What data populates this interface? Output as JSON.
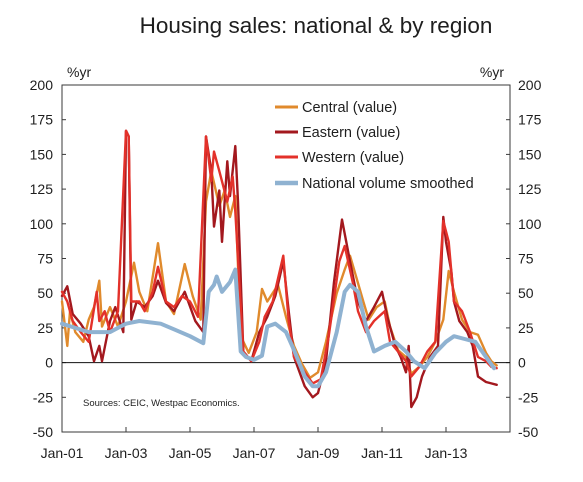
{
  "chart_data": {
    "type": "line",
    "title": "Housing sales: national & by region",
    "ylabel_left": "%yr",
    "ylabel_right": "%yr",
    "ylim": [
      -50,
      200
    ],
    "yticks": [
      -50,
      -25,
      0,
      25,
      50,
      75,
      100,
      125,
      150,
      175,
      200
    ],
    "xlim": [
      "2001-01",
      "2015-01"
    ],
    "xticks": [
      {
        "date": "2001-01",
        "label": "Jan-01"
      },
      {
        "date": "2003-01",
        "label": "Jan-03"
      },
      {
        "date": "2005-01",
        "label": "Jan-05"
      },
      {
        "date": "2007-01",
        "label": "Jan-07"
      },
      {
        "date": "2009-01",
        "label": "Jan-09"
      },
      {
        "date": "2011-01",
        "label": "Jan-11"
      },
      {
        "date": "2013-01",
        "label": "Jan-13"
      }
    ],
    "grid": false,
    "zero_line": true,
    "legend_position": "top-right",
    "source": "Sources: CEIC, Westpac Economics.",
    "series": [
      {
        "name": "Central (value)",
        "color": "#E08A2C",
        "points": [
          [
            "2001-01",
            44
          ],
          [
            "2001-03",
            12
          ],
          [
            "2001-04",
            37
          ],
          [
            "2001-06",
            22
          ],
          [
            "2001-09",
            15
          ],
          [
            "2001-11",
            31
          ],
          [
            "2002-01",
            40
          ],
          [
            "2002-03",
            59
          ],
          [
            "2002-04",
            26
          ],
          [
            "2002-07",
            40
          ],
          [
            "2002-10",
            26
          ],
          [
            "2003-01",
            44
          ],
          [
            "2003-04",
            72
          ],
          [
            "2003-06",
            51
          ],
          [
            "2003-09",
            37
          ],
          [
            "2004-01",
            86
          ],
          [
            "2004-04",
            44
          ],
          [
            "2004-07",
            35
          ],
          [
            "2004-11",
            71
          ],
          [
            "2005-02",
            48
          ],
          [
            "2005-05",
            31
          ],
          [
            "2005-07",
            116
          ],
          [
            "2005-09",
            138
          ],
          [
            "2005-12",
            113
          ],
          [
            "2006-02",
            124
          ],
          [
            "2006-04",
            105
          ],
          [
            "2006-06",
            120
          ],
          [
            "2006-08",
            19
          ],
          [
            "2006-11",
            7
          ],
          [
            "2007-02",
            22
          ],
          [
            "2007-04",
            53
          ],
          [
            "2007-06",
            44
          ],
          [
            "2007-10",
            56
          ],
          [
            "2008-01",
            33
          ],
          [
            "2008-04",
            12
          ],
          [
            "2008-07",
            -1
          ],
          [
            "2008-10",
            -11
          ],
          [
            "2009-01",
            -7
          ],
          [
            "2009-04",
            15
          ],
          [
            "2009-08",
            50
          ],
          [
            "2009-11",
            67
          ],
          [
            "2010-01",
            77
          ],
          [
            "2010-03",
            64
          ],
          [
            "2010-06",
            44
          ],
          [
            "2010-08",
            31
          ],
          [
            "2010-11",
            40
          ],
          [
            "2011-02",
            44
          ],
          [
            "2011-04",
            26
          ],
          [
            "2011-07",
            9
          ],
          [
            "2011-10",
            4
          ],
          [
            "2011-12",
            -8
          ],
          [
            "2012-03",
            -3
          ],
          [
            "2012-06",
            4
          ],
          [
            "2012-09",
            15
          ],
          [
            "2012-12",
            31
          ],
          [
            "2013-02",
            66
          ],
          [
            "2013-04",
            51
          ],
          [
            "2013-07",
            31
          ],
          [
            "2013-10",
            22
          ],
          [
            "2014-01",
            20
          ],
          [
            "2014-04",
            7
          ],
          [
            "2014-06",
            1
          ],
          [
            "2014-08",
            -2
          ]
        ]
      },
      {
        "name": "Eastern (value)",
        "color": "#A3181E",
        "points": [
          [
            "2001-01",
            48
          ],
          [
            "2001-03",
            55
          ],
          [
            "2001-05",
            35
          ],
          [
            "2001-08",
            28
          ],
          [
            "2001-11",
            19
          ],
          [
            "2002-01",
            1
          ],
          [
            "2002-03",
            12
          ],
          [
            "2002-04",
            1
          ],
          [
            "2002-07",
            30
          ],
          [
            "2002-09",
            40
          ],
          [
            "2002-12",
            22
          ],
          [
            "2003-01",
            167
          ],
          [
            "2003-02",
            163
          ],
          [
            "2003-03",
            31
          ],
          [
            "2003-05",
            44
          ],
          [
            "2003-08",
            40
          ],
          [
            "2003-11",
            48
          ],
          [
            "2004-01",
            59
          ],
          [
            "2004-04",
            43
          ],
          [
            "2004-07",
            37
          ],
          [
            "2004-11",
            51
          ],
          [
            "2005-03",
            30
          ],
          [
            "2005-06",
            22
          ],
          [
            "2005-07",
            163
          ],
          [
            "2005-09",
            138
          ],
          [
            "2005-10",
            98
          ],
          [
            "2005-12",
            124
          ],
          [
            "2006-01",
            87
          ],
          [
            "2006-03",
            145
          ],
          [
            "2006-04",
            120
          ],
          [
            "2006-06",
            156
          ],
          [
            "2006-07",
            116
          ],
          [
            "2006-09",
            8
          ],
          [
            "2006-12",
            1
          ],
          [
            "2007-03",
            22
          ],
          [
            "2007-06",
            33
          ],
          [
            "2007-09",
            48
          ],
          [
            "2007-12",
            73
          ],
          [
            "2008-02",
            37
          ],
          [
            "2008-04",
            4
          ],
          [
            "2008-08",
            -17
          ],
          [
            "2008-11",
            -25
          ],
          [
            "2009-01",
            -22
          ],
          [
            "2009-04",
            1
          ],
          [
            "2009-07",
            58
          ],
          [
            "2009-10",
            103
          ],
          [
            "2010-01",
            73
          ],
          [
            "2010-04",
            44
          ],
          [
            "2010-07",
            30
          ],
          [
            "2010-10",
            40
          ],
          [
            "2011-01",
            51
          ],
          [
            "2011-03",
            33
          ],
          [
            "2011-06",
            12
          ],
          [
            "2011-08",
            4
          ],
          [
            "2011-10",
            -7
          ],
          [
            "2011-11",
            12
          ],
          [
            "2011-12",
            -32
          ],
          [
            "2012-02",
            -25
          ],
          [
            "2012-04",
            -10
          ],
          [
            "2012-07",
            4
          ],
          [
            "2012-10",
            12
          ],
          [
            "2012-12",
            105
          ],
          [
            "2013-01",
            87
          ],
          [
            "2013-03",
            66
          ],
          [
            "2013-04",
            44
          ],
          [
            "2013-06",
            30
          ],
          [
            "2013-09",
            22
          ],
          [
            "2013-11",
            12
          ],
          [
            "2014-01",
            -10
          ],
          [
            "2014-04",
            -14
          ],
          [
            "2014-06",
            -15
          ],
          [
            "2014-08",
            -16
          ]
        ]
      },
      {
        "name": "Western (value)",
        "color": "#E3312A",
        "points": [
          [
            "2001-01",
            51
          ],
          [
            "2001-03",
            44
          ],
          [
            "2001-05",
            30
          ],
          [
            "2001-08",
            22
          ],
          [
            "2001-11",
            15
          ],
          [
            "2002-02",
            51
          ],
          [
            "2002-03",
            30
          ],
          [
            "2002-05",
            37
          ],
          [
            "2002-07",
            22
          ],
          [
            "2002-10",
            37
          ],
          [
            "2003-01",
            167
          ],
          [
            "2003-02",
            163
          ],
          [
            "2003-03",
            44
          ],
          [
            "2003-06",
            44
          ],
          [
            "2003-08",
            37
          ],
          [
            "2003-11",
            51
          ],
          [
            "2004-01",
            69
          ],
          [
            "2004-04",
            44
          ],
          [
            "2004-07",
            40
          ],
          [
            "2004-10",
            48
          ],
          [
            "2005-01",
            44
          ],
          [
            "2005-04",
            33
          ],
          [
            "2005-07",
            163
          ],
          [
            "2005-09",
            131
          ],
          [
            "2005-10",
            152
          ],
          [
            "2005-12",
            138
          ],
          [
            "2006-03",
            116
          ],
          [
            "2006-05",
            134
          ],
          [
            "2006-06",
            109
          ],
          [
            "2006-09",
            8
          ],
          [
            "2006-12",
            1
          ],
          [
            "2007-03",
            15
          ],
          [
            "2007-05",
            33
          ],
          [
            "2007-08",
            44
          ],
          [
            "2007-12",
            77
          ],
          [
            "2008-02",
            30
          ],
          [
            "2008-04",
            4
          ],
          [
            "2008-08",
            -7
          ],
          [
            "2008-11",
            -15
          ],
          [
            "2009-02",
            -12
          ],
          [
            "2009-05",
            19
          ],
          [
            "2009-09",
            73
          ],
          [
            "2009-11",
            84
          ],
          [
            "2010-02",
            58
          ],
          [
            "2010-04",
            37
          ],
          [
            "2010-07",
            22
          ],
          [
            "2010-10",
            30
          ],
          [
            "2011-02",
            37
          ],
          [
            "2011-04",
            15
          ],
          [
            "2011-07",
            8
          ],
          [
            "2011-10",
            1
          ],
          [
            "2011-12",
            -10
          ],
          [
            "2012-03",
            -3
          ],
          [
            "2012-06",
            8
          ],
          [
            "2012-09",
            15
          ],
          [
            "2012-12",
            102
          ],
          [
            "2013-02",
            87
          ],
          [
            "2013-04",
            44
          ],
          [
            "2013-07",
            37
          ],
          [
            "2013-10",
            22
          ],
          [
            "2014-01",
            4
          ],
          [
            "2014-04",
            1
          ],
          [
            "2014-06",
            -3
          ],
          [
            "2014-08",
            -4
          ]
        ]
      },
      {
        "name": "National volume smoothed",
        "color": "#8FB2D1",
        "points": [
          [
            "2001-01",
            28
          ],
          [
            "2001-06",
            25
          ],
          [
            "2001-11",
            22
          ],
          [
            "2002-07",
            22
          ],
          [
            "2002-10",
            25
          ],
          [
            "2003-01",
            28
          ],
          [
            "2003-06",
            30
          ],
          [
            "2004-02",
            28
          ],
          [
            "2004-07",
            24
          ],
          [
            "2005-01",
            19
          ],
          [
            "2005-06",
            14
          ],
          [
            "2005-08",
            51
          ],
          [
            "2005-10",
            56
          ],
          [
            "2005-11",
            62
          ],
          [
            "2006-01",
            51
          ],
          [
            "2006-04",
            58
          ],
          [
            "2006-06",
            67
          ],
          [
            "2006-08",
            8
          ],
          [
            "2006-10",
            4
          ],
          [
            "2007-01",
            2
          ],
          [
            "2007-04",
            5
          ],
          [
            "2007-06",
            26
          ],
          [
            "2007-09",
            28
          ],
          [
            "2008-01",
            22
          ],
          [
            "2008-04",
            9
          ],
          [
            "2008-08",
            -10
          ],
          [
            "2008-11",
            -17
          ],
          [
            "2009-01",
            -17
          ],
          [
            "2009-04",
            -7
          ],
          [
            "2009-08",
            22
          ],
          [
            "2009-11",
            51
          ],
          [
            "2010-01",
            56
          ],
          [
            "2010-04",
            51
          ],
          [
            "2010-07",
            26
          ],
          [
            "2010-10",
            8
          ],
          [
            "2011-02",
            12
          ],
          [
            "2011-06",
            15
          ],
          [
            "2011-10",
            8
          ],
          [
            "2012-01",
            1
          ],
          [
            "2012-05",
            -4
          ],
          [
            "2012-09",
            7
          ],
          [
            "2013-01",
            15
          ],
          [
            "2013-04",
            19
          ],
          [
            "2013-08",
            17
          ],
          [
            "2013-12",
            15
          ],
          [
            "2014-04",
            4
          ],
          [
            "2014-07",
            -4
          ]
        ]
      }
    ]
  }
}
